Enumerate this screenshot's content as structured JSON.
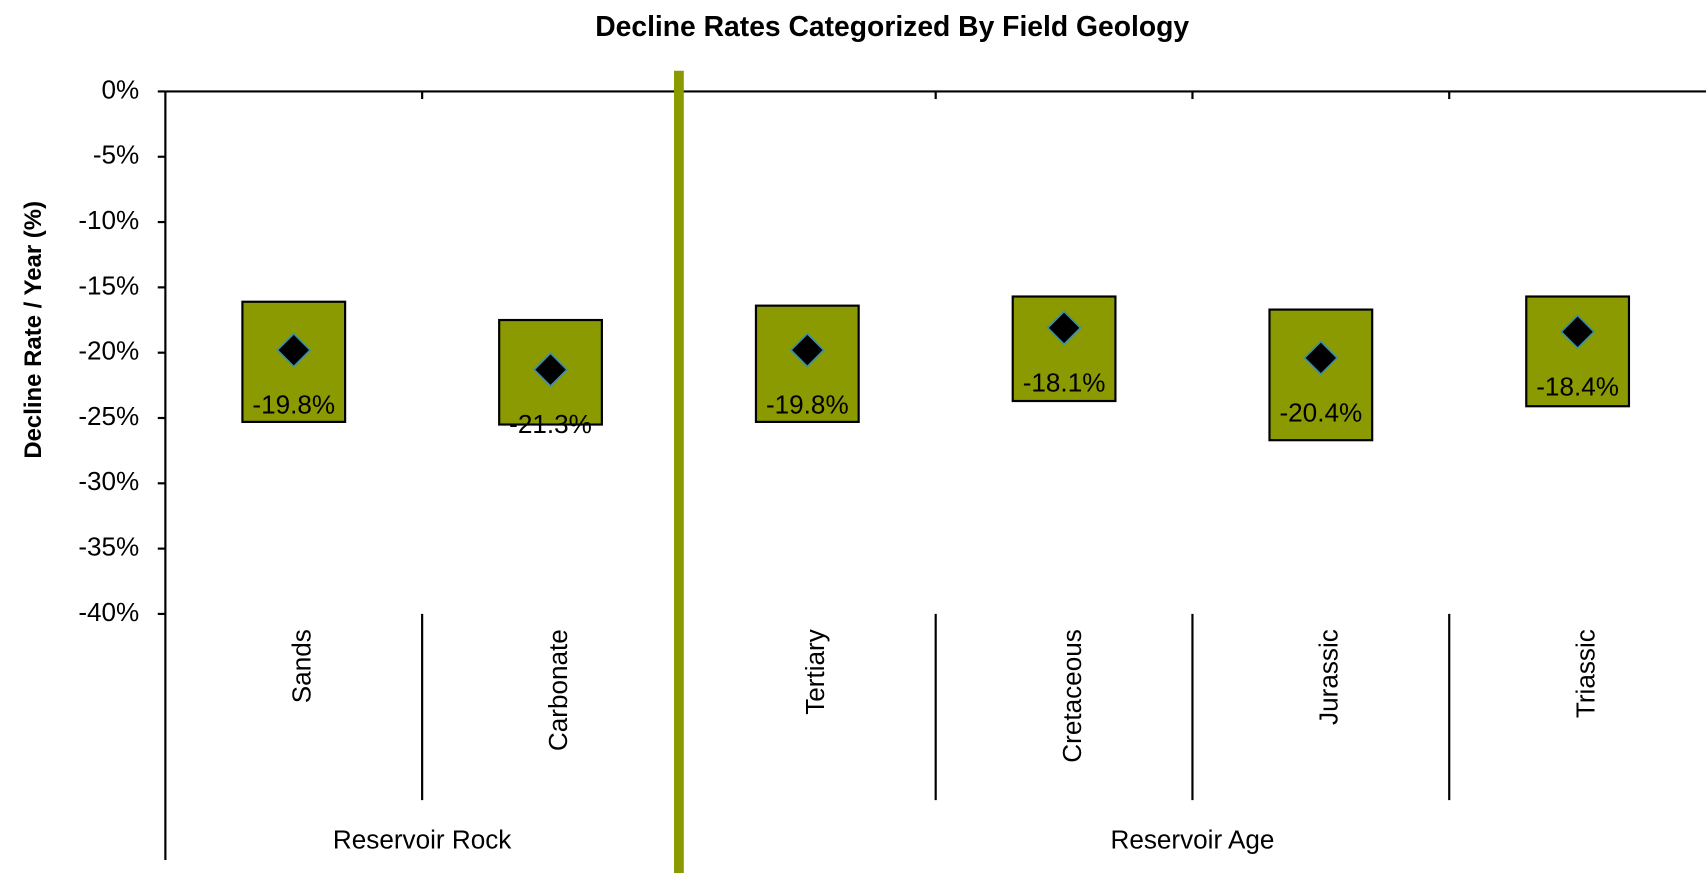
{
  "chart_data": {
    "type": "range",
    "title": "Decline Rates Categorized By Field Geology",
    "y_label": "Decline Rate / Year (%)",
    "groups": [
      {
        "name": "Reservoir Rock",
        "categories": [
          "Sands",
          "Carbonate"
        ]
      },
      {
        "name": "Reservoir Age",
        "categories": [
          "Tertiary",
          "Cretaceous",
          "Jurassic",
          "Triassic"
        ]
      }
    ],
    "values": [
      -19.8,
      -21.3,
      -19.8,
      -18.1,
      -20.4,
      -18.4
    ],
    "value_labels": [
      "-19.8%",
      "-21.3%",
      "-19.8%",
      "-18.1%",
      "-20.4%",
      "-18.4%"
    ],
    "high": [
      -16.1,
      -17.5,
      -16.4,
      -15.7,
      -16.7,
      -15.7
    ],
    "low": [
      -25.3,
      -25.5,
      -25.3,
      -23.7,
      -26.7,
      -24.1
    ],
    "color": "#8a9a00",
    "marker_color": "#000000",
    "separator_color": "#8a9a00",
    "ylim": [
      -40,
      0
    ],
    "yticks": [
      {
        "value": 0,
        "label": "0%"
      },
      {
        "value": -5,
        "label": "-5%"
      },
      {
        "value": -10,
        "label": "-10%"
      },
      {
        "value": -15,
        "label": "-15%"
      },
      {
        "value": -20,
        "label": "-20%"
      },
      {
        "value": -25,
        "label": "-25%"
      },
      {
        "value": -30,
        "label": "-30%"
      },
      {
        "value": -35,
        "label": "-35%"
      },
      {
        "value": -40,
        "label": "-40%"
      }
    ]
  }
}
